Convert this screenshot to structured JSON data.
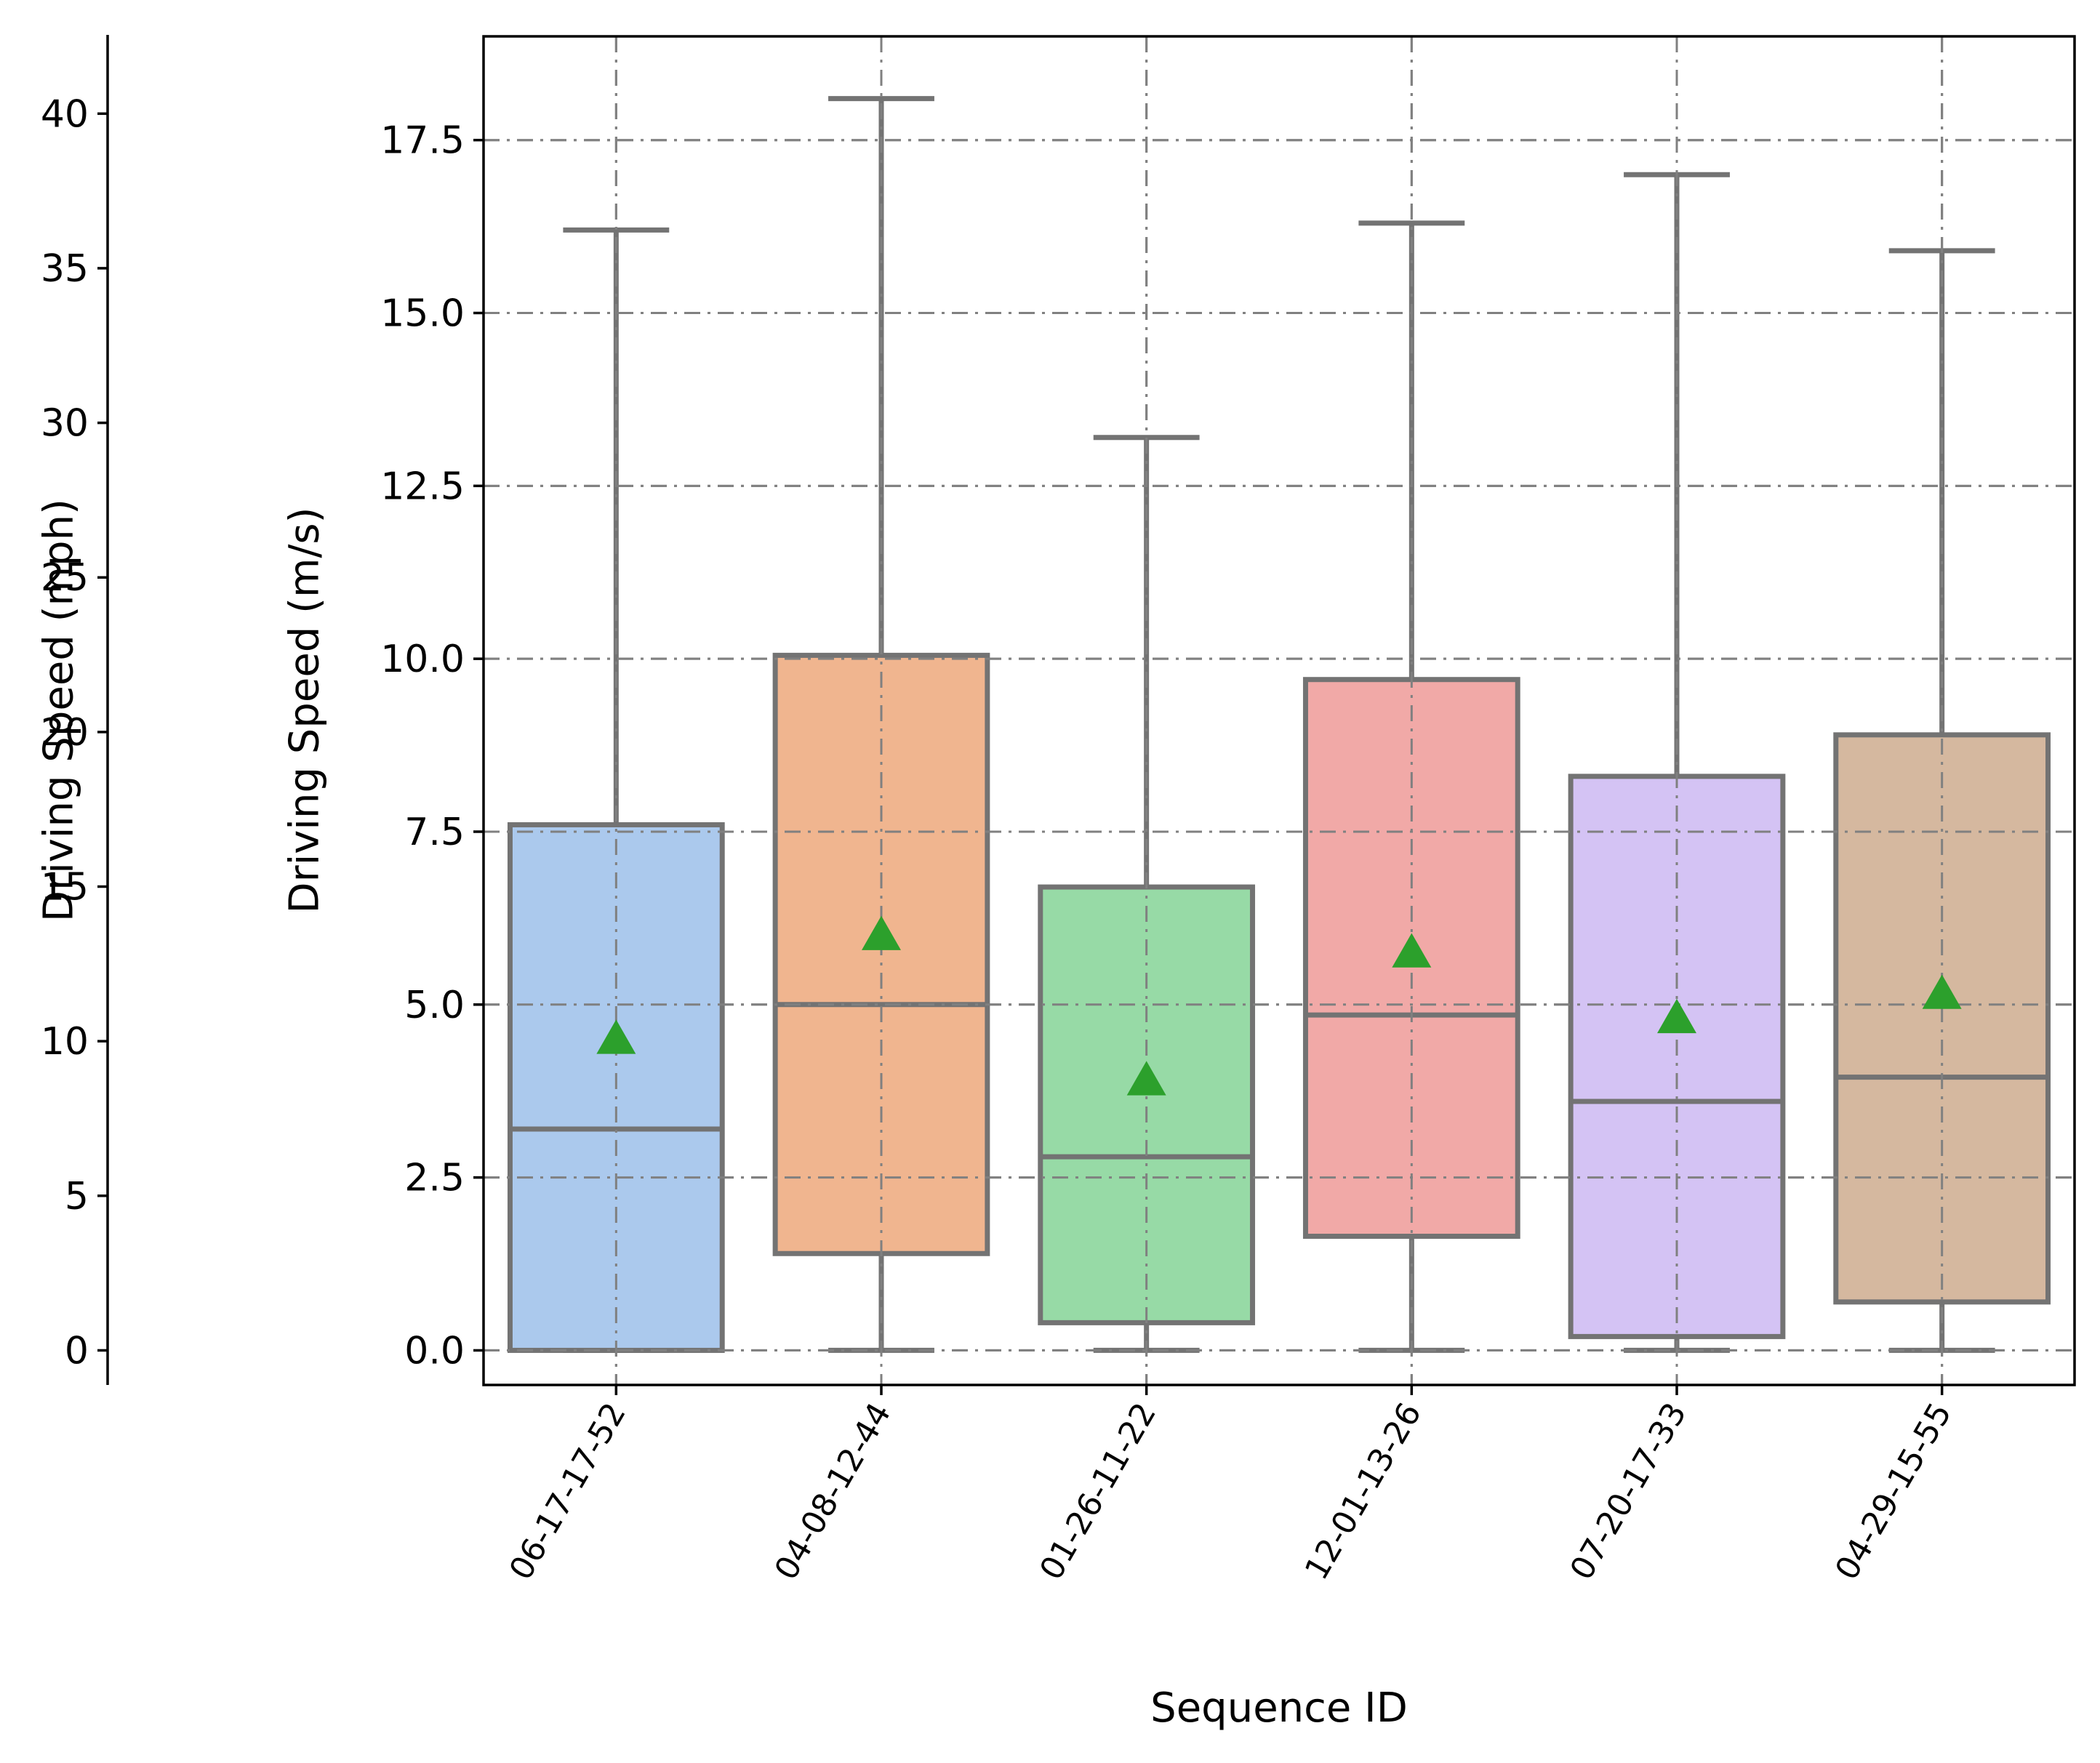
{
  "chart_data": {
    "type": "box",
    "title": "",
    "xlabel": "Sequence ID",
    "ylabel": "Driving Speed (m/s)",
    "secondary_ylabel": "Driving Speed (mph)",
    "ylim": [
      -0.5,
      19.0
    ],
    "secondary_ylim": [
      -1.1185,
      42.5
    ],
    "yticks": [
      0.0,
      2.5,
      5.0,
      7.5,
      10.0,
      12.5,
      15.0,
      17.5
    ],
    "ytick_labels": [
      "0.0",
      "2.5",
      "5.0",
      "7.5",
      "10.0",
      "12.5",
      "15.0",
      "17.5"
    ],
    "secondary_yticks": [
      0,
      5,
      10,
      15,
      20,
      25,
      30,
      35,
      40
    ],
    "secondary_ytick_labels": [
      "0",
      "5",
      "10",
      "15",
      "20",
      "25",
      "30",
      "35",
      "40"
    ],
    "grid": true,
    "categories": [
      "06-17-17-52",
      "04-08-12-44",
      "01-26-11-22",
      "12-01-13-26",
      "07-20-17-33",
      "04-29-15-55"
    ],
    "boxes": [
      {
        "category": "06-17-17-52",
        "whisker_low": 0.0,
        "q1": 0.0,
        "median": 3.2,
        "q3": 7.6,
        "whisker_high": 16.2,
        "mean": 4.5,
        "color": "#abc9ed"
      },
      {
        "category": "04-08-12-44",
        "whisker_low": 0.0,
        "q1": 1.4,
        "median": 5.0,
        "q3": 10.05,
        "whisker_high": 18.1,
        "mean": 6.0,
        "color": "#f0b58f"
      },
      {
        "category": "01-26-11-22",
        "whisker_low": 0.0,
        "q1": 0.4,
        "median": 2.8,
        "q3": 6.7,
        "whisker_high": 13.2,
        "mean": 3.9,
        "color": "#97daa6"
      },
      {
        "category": "12-01-13-26",
        "whisker_low": 0.0,
        "q1": 1.65,
        "median": 4.85,
        "q3": 9.7,
        "whisker_high": 16.3,
        "mean": 5.75,
        "color": "#f1a9a7"
      },
      {
        "category": "07-20-17-33",
        "whisker_low": 0.0,
        "q1": 0.2,
        "median": 3.6,
        "q3": 8.3,
        "whisker_high": 17.0,
        "mean": 4.8,
        "color": "#d4c3f4"
      },
      {
        "category": "04-29-15-55",
        "whisker_low": 0.0,
        "q1": 0.7,
        "median": 3.95,
        "q3": 8.9,
        "whisker_high": 15.9,
        "mean": 5.15,
        "color": "#d5b89f"
      }
    ],
    "mean_marker_color": "#2ca02c",
    "box_edge_color": "#737373"
  }
}
